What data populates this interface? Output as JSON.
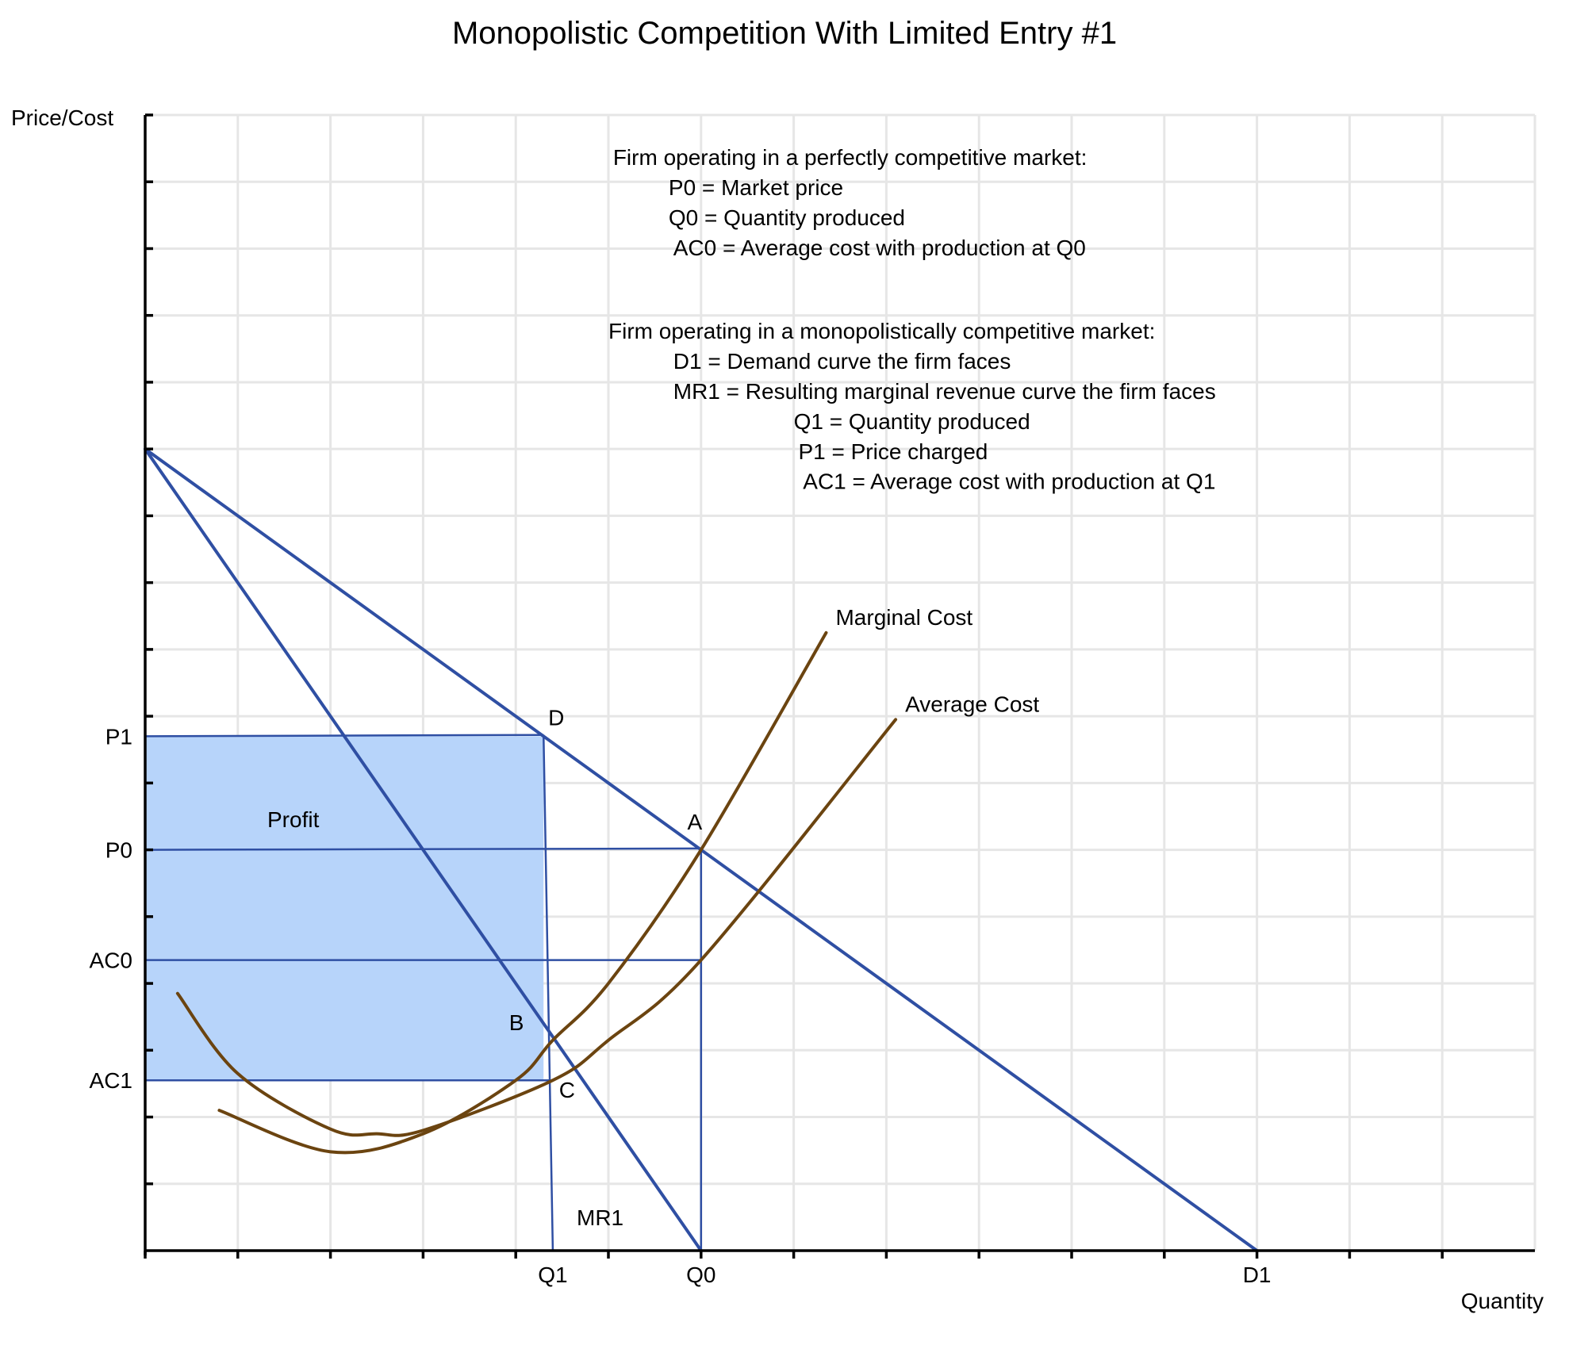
{
  "chart_data": {
    "type": "line",
    "title": "Monopolistic Competition With Limited Entry #1",
    "xlabel": "Quantity",
    "ylabel": "Price/Cost",
    "xlim": [
      0,
      15
    ],
    "ylim": [
      0,
      17
    ],
    "grid": true,
    "x_ticks": [
      {
        "value": 4.4,
        "label": "Q1"
      },
      {
        "value": 6.0,
        "label": "Q0"
      },
      {
        "value": 12.0,
        "label": "D1"
      }
    ],
    "y_ticks": [
      {
        "value": 7.7,
        "label": "P1"
      },
      {
        "value": 6.0,
        "label": "P0"
      },
      {
        "value": 4.35,
        "label": "AC0"
      },
      {
        "value": 2.55,
        "label": "AC1"
      }
    ],
    "series": [
      {
        "name": "D1",
        "color": "#2f4fa3",
        "x": [
          0,
          12
        ],
        "y": [
          12,
          0
        ]
      },
      {
        "name": "MR1",
        "color": "#2f4fa3",
        "x": [
          0,
          6
        ],
        "y": [
          12,
          0
        ]
      },
      {
        "name": "Marginal Cost",
        "color": "#6b4410",
        "x": [
          0.8,
          2.0,
          3.0,
          4.0,
          4.4,
          5.0,
          6.0,
          7.35
        ],
        "y": [
          2.1,
          1.48,
          1.75,
          2.55,
          3.15,
          4.0,
          6.0,
          9.25
        ]
      },
      {
        "name": "Average Cost",
        "color": "#6b4410",
        "x": [
          0.35,
          1.0,
          2.0,
          2.5,
          3.0,
          4.4,
          5.0,
          6.0,
          8.1
        ],
        "y": [
          3.85,
          2.65,
          1.82,
          1.75,
          1.8,
          2.55,
          3.15,
          4.35,
          7.95
        ]
      }
    ],
    "points": [
      {
        "label": "D",
        "x": 4.3,
        "y": 7.72
      },
      {
        "label": "A",
        "x": 6.0,
        "y": 6.02
      },
      {
        "label": "B",
        "x": 4.35,
        "y": 3.3
      },
      {
        "label": "C",
        "x": 4.4,
        "y": 2.55
      }
    ],
    "profit_region": {
      "label": "Profit",
      "x": [
        0,
        4.3
      ],
      "y": [
        2.55,
        7.7
      ],
      "color": "#b7d4fa"
    },
    "reference_lines": [
      {
        "from": [
          0,
          7.7
        ],
        "to": [
          4.3,
          7.72
        ]
      },
      {
        "from": [
          0,
          6.0
        ],
        "to": [
          6.0,
          6.02
        ]
      },
      {
        "from": [
          0,
          4.35
        ],
        "to": [
          6.0,
          4.35
        ]
      },
      {
        "from": [
          0,
          2.55
        ],
        "to": [
          4.4,
          2.55
        ]
      },
      {
        "from": [
          4.3,
          7.72
        ],
        "to": [
          4.4,
          0
        ]
      },
      {
        "from": [
          6.0,
          6.02
        ],
        "to": [
          6.0,
          0
        ]
      }
    ],
    "curve_labels": [
      {
        "text": "Marginal Cost",
        "x": 7.35,
        "y": 9.25
      },
      {
        "text": "Average Cost",
        "x": 8.1,
        "y": 7.95
      },
      {
        "text": "MR1",
        "x": 5.0,
        "y": 0.5
      }
    ],
    "annotations": [
      {
        "text": "Firm operating in a perfectly competitive market:",
        "x": 5.05,
        "y": 16.25
      },
      {
        "text": "P0 = Market price",
        "x": 5.65,
        "y": 15.8
      },
      {
        "text": "Q0 = Quantity produced",
        "x": 5.65,
        "y": 15.35
      },
      {
        "text": "AC0 = Average cost with production at Q0",
        "x": 5.7,
        "y": 14.9
      },
      {
        "text": "Firm operating in a monopolistically competitive market:",
        "x": 5.0,
        "y": 13.65
      },
      {
        "text": "D1 = Demand curve the firm faces",
        "x": 5.7,
        "y": 13.2
      },
      {
        "text": "MR1 = Resulting marginal revenue curve the firm faces",
        "x": 5.7,
        "y": 12.75
      },
      {
        "text": "Q1  = Quantity produced",
        "x": 7.0,
        "y": 12.3
      },
      {
        "text": "P1 = Price charged",
        "x": 7.05,
        "y": 11.85
      },
      {
        "text": "AC1  = Average cost with production at Q1",
        "x": 7.1,
        "y": 11.4
      }
    ]
  }
}
